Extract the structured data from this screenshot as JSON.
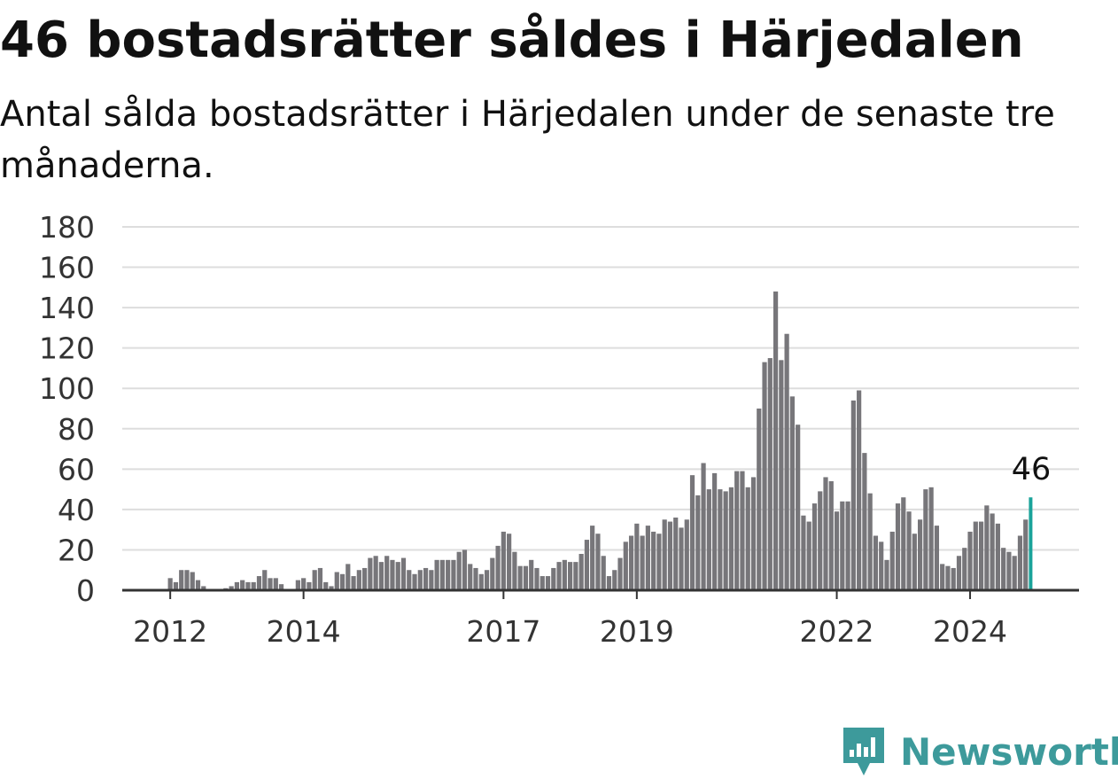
{
  "header": {
    "title": "46 bostadsrätter såldes i Härjedalen",
    "subtitle": "Antal sålda bostadsrätter i Härjedalen under de senaste tre månaderna."
  },
  "brand": {
    "name": "Newsworthy",
    "icon": "newsworthy-logo-icon",
    "color": "#3d9a9b"
  },
  "colors": {
    "bar": "#77767a",
    "highlight": "#1aa39a",
    "grid": "#dddddd",
    "axis": "#333333"
  },
  "chart_data": {
    "type": "bar",
    "title": "46 bostadsrätter såldes i Härjedalen",
    "subtitle": "Antal sålda bostadsrätter i Härjedalen under de senaste tre månaderna.",
    "xlabel": "",
    "ylabel": "",
    "ylim": [
      0,
      180
    ],
    "yticks": [
      "0",
      "20",
      "40",
      "60",
      "80",
      "100",
      "120",
      "140",
      "160",
      "180"
    ],
    "xtick_labels": [
      "2012",
      "2014",
      "2017",
      "2019",
      "2022",
      "2024"
    ],
    "grid": true,
    "legend": "none",
    "highlight_label": "46",
    "x_start": "2011-05",
    "x_end": "2025-02",
    "values": [
      0,
      0,
      0,
      0,
      0,
      0,
      0,
      0,
      6,
      4,
      10,
      10,
      9,
      5,
      2,
      0,
      0,
      0,
      1,
      2,
      4,
      5,
      4,
      4,
      7,
      10,
      6,
      6,
      3,
      0,
      0,
      5,
      6,
      4,
      10,
      11,
      4,
      2,
      9,
      8,
      13,
      7,
      10,
      11,
      16,
      17,
      14,
      17,
      15,
      14,
      16,
      10,
      8,
      10,
      11,
      10,
      15,
      15,
      15,
      15,
      19,
      20,
      13,
      11,
      8,
      10,
      16,
      22,
      29,
      28,
      19,
      12,
      12,
      15,
      11,
      7,
      7,
      11,
      14,
      15,
      14,
      14,
      18,
      25,
      32,
      28,
      17,
      7,
      10,
      16,
      24,
      27,
      33,
      27,
      32,
      29,
      28,
      35,
      34,
      36,
      31,
      35,
      57,
      47,
      63,
      50,
      58,
      50,
      49,
      51,
      59,
      59,
      51,
      56,
      90,
      113,
      115,
      148,
      114,
      127,
      96,
      82,
      37,
      34,
      43,
      49,
      56,
      54,
      39,
      44,
      44,
      94,
      99,
      68,
      48,
      27,
      24,
      15,
      29,
      43,
      46,
      39,
      28,
      35,
      50,
      51,
      32,
      13,
      12,
      11,
      17,
      21,
      29,
      34,
      34,
      42,
      38,
      33,
      21,
      19,
      17,
      27,
      35,
      46
    ]
  }
}
